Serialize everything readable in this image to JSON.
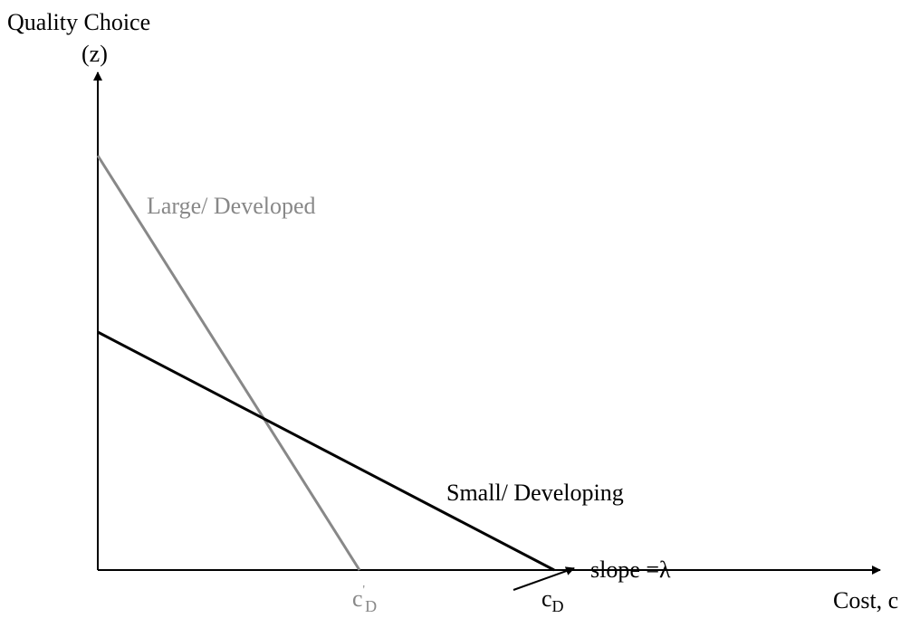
{
  "y_axis": {
    "label_line1": "Quality Choice",
    "label_line2": "(z)"
  },
  "x_axis": {
    "label": "Cost, c"
  },
  "curves": [
    {
      "label": "Large/ Developed",
      "intercept_label": {
        "base": "c",
        "prime": "'",
        "sub": "D"
      }
    },
    {
      "label": "Small/ Developing",
      "intercept_label": {
        "base": "c",
        "sub": "D"
      }
    }
  ],
  "annotation": "slope =λ"
}
